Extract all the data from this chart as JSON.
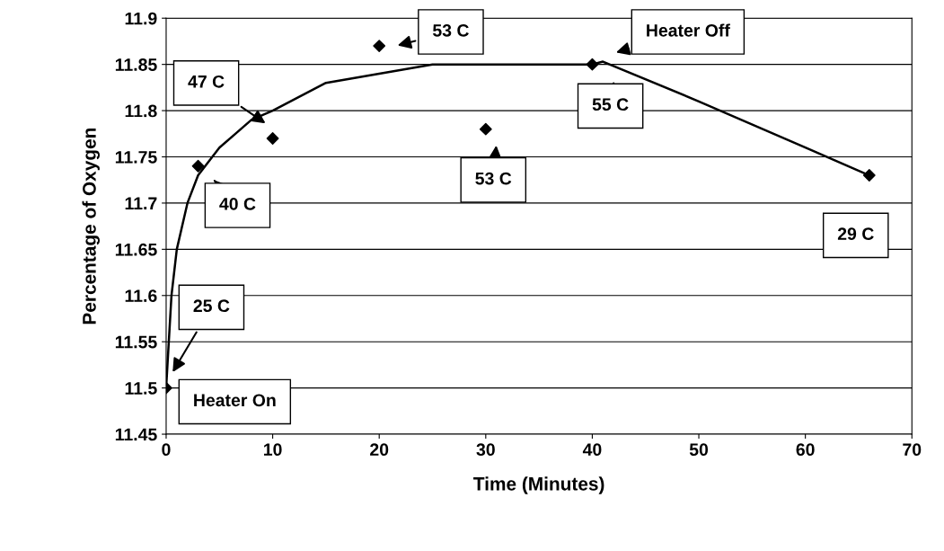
{
  "chart_data": {
    "type": "scatter",
    "xlabel": "Time (Minutes)",
    "ylabel": "Percentage of Oxygen",
    "xlim": [
      0,
      70
    ],
    "xticks": [
      0,
      10,
      20,
      30,
      40,
      50,
      60,
      70
    ],
    "ylim": [
      11.45,
      11.9
    ],
    "yticks": [
      11.45,
      11.5,
      11.55,
      11.6,
      11.65,
      11.7,
      11.75,
      11.8,
      11.85,
      11.9
    ],
    "grid": "y",
    "legend": false,
    "series": [
      {
        "color": "#000000",
        "marker": "diamond",
        "x": [
          0,
          3,
          10,
          20,
          30,
          40,
          66
        ],
        "values": [
          11.5,
          11.74,
          11.77,
          11.87,
          11.78,
          11.85,
          11.73
        ]
      },
      {
        "type": "line",
        "color": "#000000",
        "marker": "none",
        "line_style": "solid",
        "x": [
          0,
          0.5,
          1,
          2,
          3,
          5,
          8,
          10,
          15,
          20,
          25,
          30,
          40,
          41,
          50,
          60,
          66
        ],
        "values": [
          11.5,
          11.6,
          11.65,
          11.7,
          11.73,
          11.76,
          11.79,
          11.8,
          11.83,
          11.84,
          11.85,
          11.85,
          11.85,
          11.853,
          11.81,
          11.76,
          11.73
        ]
      }
    ],
    "annotations": [
      "Heater On",
      "25 C",
      "40 C",
      "47 C",
      "53 C",
      "Heater Off",
      "55 C",
      "53 C",
      "29 C"
    ]
  }
}
